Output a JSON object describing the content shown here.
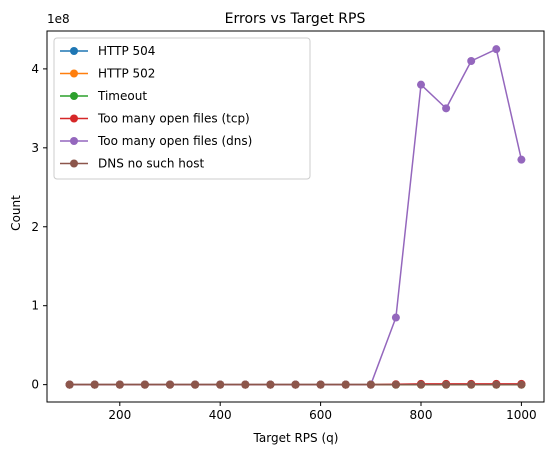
{
  "chart_data": {
    "type": "line",
    "title": "Errors vs Target RPS",
    "xlabel": "Target RPS (q)",
    "ylabel": "Count",
    "y_offset_label": "1e8",
    "y_scale": 100000000,
    "xlim": [
      55,
      1045
    ],
    "ylim": [
      -0.22,
      4.48
    ],
    "xticks": [
      200,
      400,
      600,
      800,
      1000
    ],
    "yticks": [
      0,
      1,
      2,
      3,
      4
    ],
    "grid": false,
    "legend_position": "upper-left",
    "x": [
      100,
      150,
      200,
      250,
      300,
      350,
      400,
      450,
      500,
      550,
      600,
      650,
      700,
      750,
      800,
      850,
      900,
      950,
      1000
    ],
    "series": [
      {
        "name": "HTTP 504",
        "color": "#1f77b4",
        "values": [
          0,
          0,
          0,
          0,
          0,
          0,
          0,
          0,
          0,
          0,
          0,
          0,
          0,
          0,
          0,
          0,
          0,
          0,
          0
        ]
      },
      {
        "name": "HTTP 502",
        "color": "#ff7f0e",
        "values": [
          0,
          0,
          0,
          0,
          0,
          0,
          0,
          0,
          0,
          0,
          0,
          0,
          0,
          0,
          0,
          0,
          0,
          0,
          0
        ]
      },
      {
        "name": "Timeout",
        "color": "#2ca02c",
        "values": [
          0,
          0,
          0,
          0,
          0,
          0,
          0,
          0,
          0,
          0,
          0,
          0,
          0,
          0,
          0,
          0,
          0,
          0,
          0
        ]
      },
      {
        "name": "Too many open files (tcp)",
        "color": "#d62728",
        "values": [
          0,
          0,
          0,
          0,
          0,
          0,
          0,
          0,
          0,
          0,
          0,
          0,
          0,
          0.005,
          0.01,
          0.01,
          0.01,
          0.01,
          0.01
        ]
      },
      {
        "name": "Too many open files (dns)",
        "color": "#9467bd",
        "values": [
          0,
          0,
          0,
          0,
          0,
          0,
          0,
          0,
          0,
          0,
          0,
          0,
          0,
          0.85,
          3.8,
          3.5,
          4.1,
          4.25,
          2.85
        ]
      },
      {
        "name": "DNS no such host",
        "color": "#8c564b",
        "values": [
          0,
          0,
          0,
          0,
          0,
          0,
          0,
          0,
          0,
          0,
          0,
          0,
          0,
          0,
          0,
          0,
          0,
          0,
          0
        ]
      }
    ]
  }
}
